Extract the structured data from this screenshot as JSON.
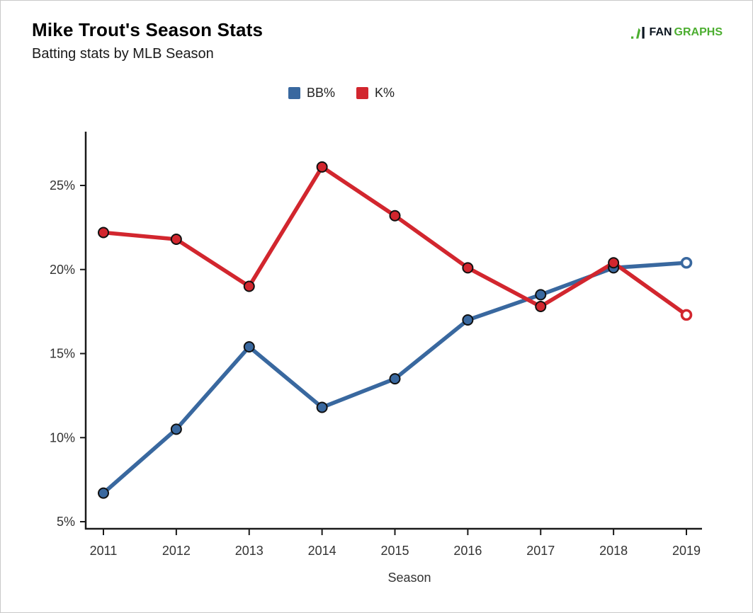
{
  "header": {
    "title": "Mike Trout's Season Stats",
    "subtitle": "Batting stats by MLB Season"
  },
  "logo": {
    "fan_text": "FAN",
    "graphs_text": "GRAPHS",
    "green": "#4cae30",
    "dark": "#0b1520"
  },
  "colors": {
    "bb_blue": "#39689f",
    "k_red": "#d2262e",
    "axis": "#1a1a1a",
    "tick_text": "#333333",
    "marker_outline": "#101010",
    "open_marker_fill": "#ffffff",
    "page_border": "#c9c9c9"
  },
  "chart_data": {
    "type": "line",
    "title": "Mike Trout's Season Stats",
    "subtitle": "Batting stats by MLB Season",
    "x": [
      "2011",
      "2012",
      "2013",
      "2014",
      "2015",
      "2016",
      "2017",
      "2018",
      "2019"
    ],
    "xlabel": "Season",
    "ylabel": "",
    "y_ticks": [
      "5%",
      "10%",
      "15%",
      "20%",
      "25%"
    ],
    "y_tick_values": [
      5,
      10,
      15,
      20,
      25
    ],
    "ylim": [
      4.6,
      28.2
    ],
    "grid": false,
    "legend_position": "top-center",
    "series": [
      {
        "name": "BB%",
        "color": "#39689f",
        "values": [
          6.7,
          10.5,
          15.4,
          11.8,
          13.5,
          17.0,
          18.5,
          20.1,
          20.4
        ],
        "last_point_open": true
      },
      {
        "name": "K%",
        "color": "#d2262e",
        "values": [
          22.2,
          21.8,
          19.0,
          26.1,
          23.2,
          20.1,
          17.8,
          20.4,
          17.3
        ],
        "last_point_open": true
      }
    ]
  }
}
